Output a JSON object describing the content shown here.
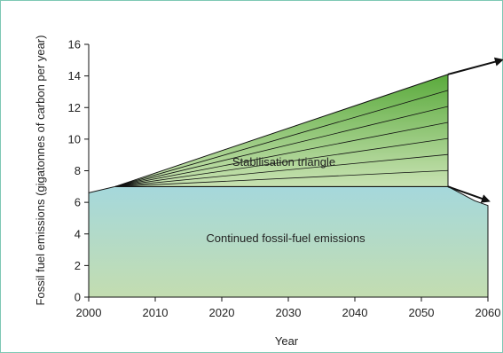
{
  "chart_data": {
    "type": "area",
    "title": "",
    "xlabel": "Year",
    "ylabel": "Fossil fuel emissions (gigatonnes of carbon per year)",
    "xlim": [
      2000,
      2060
    ],
    "ylim": [
      0,
      16
    ],
    "xticks": [
      2000,
      2010,
      2020,
      2030,
      2040,
      2050,
      2060
    ],
    "yticks": [
      0,
      2,
      4,
      6,
      8,
      10,
      12,
      14,
      16
    ],
    "series": [
      {
        "name": "Continued fossil-fuel emissions",
        "x": [
          2000,
          2004,
          2054,
          2058,
          2060
        ],
        "y": [
          6.6,
          7.0,
          7.0,
          6.1,
          5.8
        ],
        "color_top": "#a5d8dc",
        "color_bottom": "#c3ddb0"
      },
      {
        "name": "Stabilisation triangle",
        "x": [
          2004,
          2054
        ],
        "y_low": [
          7.0,
          7.0
        ],
        "y_high": [
          7.0,
          14.1
        ],
        "wedges": 7,
        "color_top": "#5aaa3c",
        "color_bottom": "#c8e2b2"
      }
    ],
    "arrows": [
      {
        "from": [
          2054,
          14.1
        ],
        "to": [
          2062,
          15.0
        ]
      },
      {
        "from": [
          2054,
          7.0
        ],
        "to": [
          2060,
          6.1
        ]
      }
    ],
    "grid": false,
    "legend": "none"
  },
  "frame_color": "#7ec8b4"
}
